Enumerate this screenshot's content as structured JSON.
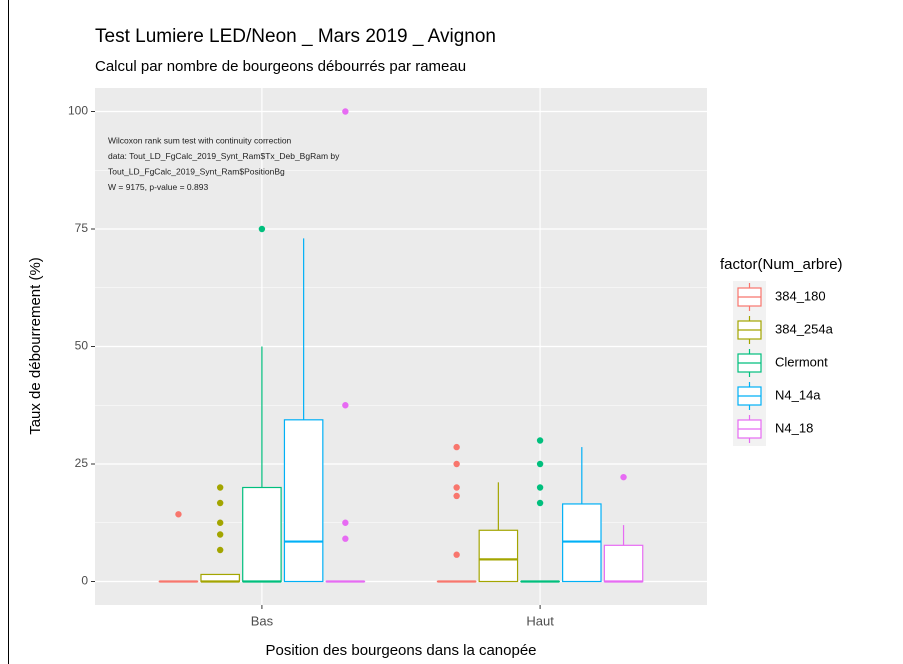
{
  "chart_data": {
    "type": "box",
    "title": "Test Lumiere LED/Neon _ Mars 2019 _ Avignon",
    "subtitle": "Calcul par nombre de bourgeons débourrés par rameau",
    "x_label": "Position des bourgeons dans la canopée",
    "y_label": "Taux de débourrement (%)",
    "legend_title": "factor(Num_arbre)",
    "annotation": [
      "Wilcoxon rank sum test with continuity correction",
      "data:  Tout_LD_FgCalc_2019_Synt_Ram$Tx_Deb_BgRam by",
      "Tout_LD_FgCalc_2019_Synt_Ram$PositionBg",
      "W = 9175, p-value = 0.893"
    ],
    "categories": [
      "Bas",
      "Haut"
    ],
    "ylim": [
      -5,
      105
    ],
    "yticks": [
      0,
      25,
      50,
      75,
      100
    ],
    "grid": true,
    "legend": "right",
    "series": [
      {
        "name": "384_180",
        "color": "#F8766D",
        "stats": [
          [
            0,
            0,
            0,
            0,
            0
          ],
          [
            0,
            0,
            0,
            0,
            0
          ]
        ],
        "outliers": [
          [
            14.3
          ],
          [
            28.6,
            25,
            20,
            18.2,
            5.7
          ]
        ]
      },
      {
        "name": "384_254a",
        "color": "#A3A500",
        "stats": [
          [
            0,
            0,
            0,
            1.5,
            1.5
          ],
          [
            0,
            0,
            4.7,
            10.9,
            21.1
          ]
        ],
        "outliers": [
          [
            20,
            16.7,
            12.5,
            10,
            6.7
          ],
          []
        ]
      },
      {
        "name": "Clermont",
        "color": "#00BF7D",
        "stats": [
          [
            0,
            0,
            0,
            20,
            50
          ],
          [
            0,
            0,
            0,
            0,
            0
          ]
        ],
        "outliers": [
          [
            75
          ],
          [
            30,
            25,
            20,
            16.7
          ]
        ]
      },
      {
        "name": "N4_14a",
        "color": "#00B0F6",
        "stats": [
          [
            0,
            0,
            8.5,
            34.4,
            73
          ],
          [
            0,
            0,
            8.5,
            16.5,
            28.6
          ]
        ],
        "outliers": [
          [],
          []
        ]
      },
      {
        "name": "N4_18",
        "color": "#E76BF3",
        "stats": [
          [
            0,
            0,
            0,
            0,
            0
          ],
          [
            0,
            0,
            0,
            7.7,
            12
          ]
        ],
        "outliers": [
          [
            100,
            37.5,
            12.5,
            9.1
          ],
          [
            22.2
          ]
        ]
      }
    ]
  }
}
